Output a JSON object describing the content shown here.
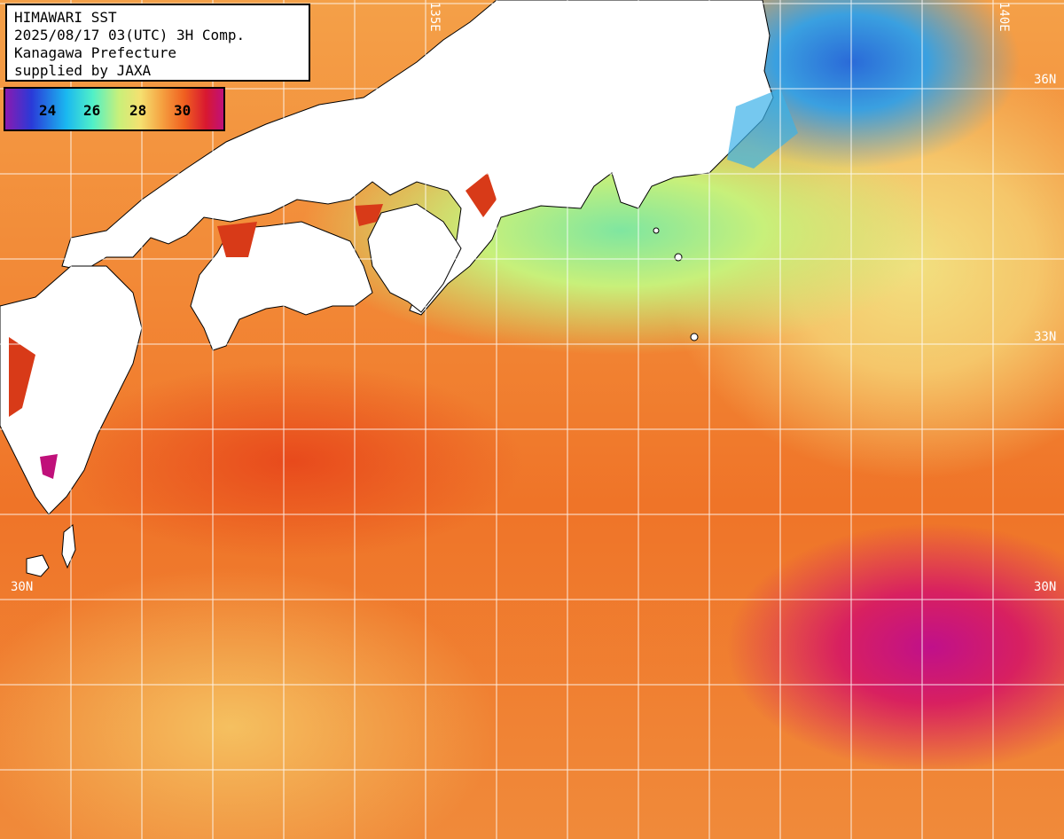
{
  "info_box": {
    "line1": "HIMAWARI SST",
    "line2": "2025/08/17 03(UTC) 3H Comp.",
    "line3": "Kanagawa Prefecture",
    "line4": "supplied by JAXA"
  },
  "legend": {
    "ticks": [
      "24",
      "26",
      "28",
      "30"
    ],
    "colors": [
      "#8a1ab0",
      "#2a3ad8",
      "#1ab8f0",
      "#50f0c8",
      "#c8f07a",
      "#f5e070",
      "#f5a040",
      "#f06020",
      "#d81830",
      "#c0107a"
    ]
  },
  "grid_labels": {
    "lat_36_right": "36N",
    "lat_33_right": "33N",
    "lat_30_left": "30N",
    "lat_30_right": "30N",
    "lon_top_1": "135E",
    "lon_top_2": "140E"
  },
  "colors": {
    "land": "#ffffff",
    "coast_warm": "#d83a18",
    "cold_water": "#2a6ad8",
    "hot_water": "#c0108a",
    "grid": "#ffffff"
  }
}
